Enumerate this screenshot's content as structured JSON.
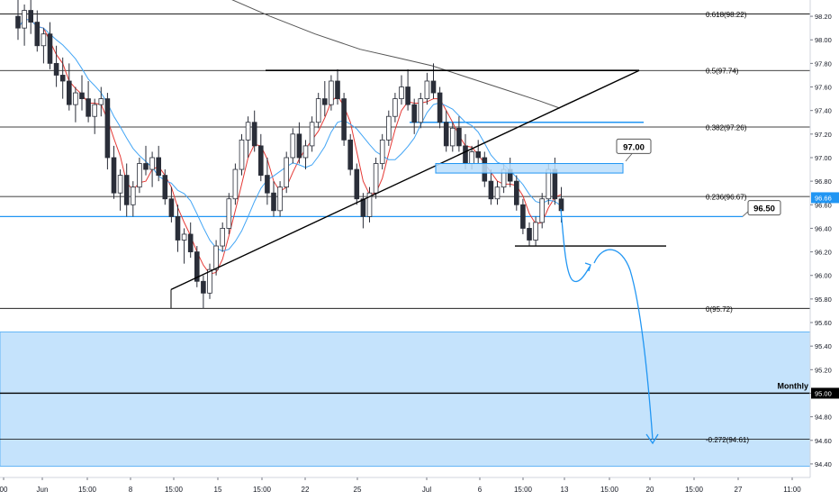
{
  "chart_data": {
    "type": "candlestick",
    "y_axis": {
      "min": 94.3,
      "max": 98.3,
      "ticks": [
        "98.20",
        "98.00",
        "97.80",
        "97.60",
        "97.40",
        "97.20",
        "97.00",
        "96.80",
        "96.60",
        "96.40",
        "96.20",
        "96.00",
        "95.80",
        "95.60",
        "95.40",
        "95.20",
        "95.00",
        "94.80",
        "94.60",
        "94.40"
      ],
      "current_price": "96.66",
      "current_value": 96.66,
      "highlight_price": "95.00",
      "highlight_value": 95.0
    },
    "x_axis": {
      "labels": [
        "00",
        "Jun",
        "15:00",
        "8",
        "15:00",
        "15",
        "15:00",
        "22",
        "25",
        "Jul",
        "6",
        "15:00",
        "13",
        "15:00",
        "20",
        "15:00",
        "27",
        "11:00"
      ]
    },
    "fib_levels": [
      {
        "label": "0.618(98.22)",
        "value": 98.22
      },
      {
        "label": "0.5(97.74)",
        "value": 97.74
      },
      {
        "label": "0.382(97.26)",
        "value": 97.26
      },
      {
        "label": "0.236(96.67)",
        "value": 96.67
      },
      {
        "label": "0(95.72)",
        "value": 95.72
      },
      {
        "label": "-0.272(94.61)",
        "value": 94.61
      }
    ],
    "horizontal_levels": [
      {
        "value": 96.5,
        "color": "#2196f3"
      },
      {
        "value": 97.3,
        "color": "#2196f3"
      },
      {
        "value": 95.0,
        "color": "#000000"
      }
    ],
    "annotations": {
      "box_97": "97.00",
      "box_9650": "96.50",
      "monthly_label": "Monthly"
    },
    "zone": {
      "from": 94.38,
      "to": 95.52,
      "color": "#bbdefb"
    },
    "colors": {
      "bull_body": "#ffffff",
      "bear_body": "#2a2e39",
      "sma_fast": "#e53935",
      "sma_mid": "#42a5f5",
      "sma_slow": "#555555",
      "accent_blue": "#2196f3",
      "zone_fill": "#bbdefb",
      "price_label_bg": "#2196f3"
    },
    "candles": [
      [
        98.2,
        98.35,
        98.0,
        98.1
      ],
      [
        98.1,
        98.3,
        97.95,
        98.25
      ],
      [
        98.25,
        98.4,
        98.05,
        98.15
      ],
      [
        98.15,
        98.25,
        97.9,
        97.95
      ],
      [
        97.95,
        98.1,
        97.8,
        98.05
      ],
      [
        98.05,
        98.15,
        97.75,
        97.8
      ],
      [
        97.8,
        97.95,
        97.6,
        97.7
      ],
      [
        97.7,
        97.85,
        97.5,
        97.65
      ],
      [
        97.65,
        97.8,
        97.4,
        97.45
      ],
      [
        97.45,
        97.6,
        97.3,
        97.55
      ],
      [
        97.55,
        97.7,
        97.4,
        97.5
      ],
      [
        97.5,
        97.65,
        97.3,
        97.35
      ],
      [
        97.35,
        97.5,
        97.2,
        97.45
      ],
      [
        97.45,
        97.6,
        97.35,
        97.5
      ],
      [
        97.5,
        97.55,
        96.9,
        97.0
      ],
      [
        97.0,
        97.1,
        96.65,
        96.7
      ],
      [
        96.7,
        96.9,
        96.55,
        96.85
      ],
      [
        96.85,
        96.95,
        96.5,
        96.6
      ],
      [
        96.6,
        96.8,
        96.5,
        96.75
      ],
      [
        96.75,
        97.0,
        96.7,
        96.95
      ],
      [
        96.95,
        97.1,
        96.85,
        96.9
      ],
      [
        96.9,
        97.05,
        96.75,
        97.0
      ],
      [
        97.0,
        97.1,
        96.8,
        96.85
      ],
      [
        96.85,
        96.9,
        96.6,
        96.65
      ],
      [
        96.65,
        96.75,
        96.45,
        96.5
      ],
      [
        96.5,
        96.6,
        96.2,
        96.3
      ],
      [
        96.3,
        96.4,
        96.1,
        96.35
      ],
      [
        96.35,
        96.45,
        96.15,
        96.2
      ],
      [
        96.2,
        96.25,
        95.9,
        95.95
      ],
      [
        95.95,
        96.0,
        95.72,
        95.85
      ],
      [
        95.85,
        96.1,
        95.8,
        96.05
      ],
      [
        96.05,
        96.3,
        96.0,
        96.25
      ],
      [
        96.25,
        96.45,
        96.2,
        96.4
      ],
      [
        96.4,
        96.7,
        96.35,
        96.65
      ],
      [
        96.65,
        96.95,
        96.6,
        96.9
      ],
      [
        96.9,
        97.2,
        96.85,
        97.15
      ],
      [
        97.15,
        97.35,
        97.0,
        97.3
      ],
      [
        97.3,
        97.4,
        97.05,
        97.1
      ],
      [
        97.1,
        97.2,
        96.8,
        96.85
      ],
      [
        96.85,
        97.0,
        96.6,
        96.7
      ],
      [
        96.7,
        96.8,
        96.5,
        96.55
      ],
      [
        96.55,
        96.8,
        96.5,
        96.75
      ],
      [
        96.75,
        97.05,
        96.7,
        97.0
      ],
      [
        97.0,
        97.25,
        96.95,
        97.2
      ],
      [
        97.2,
        97.3,
        96.95,
        97.0
      ],
      [
        97.0,
        97.15,
        96.9,
        97.1
      ],
      [
        97.1,
        97.35,
        97.05,
        97.3
      ],
      [
        97.3,
        97.55,
        97.25,
        97.5
      ],
      [
        97.5,
        97.65,
        97.35,
        97.45
      ],
      [
        97.45,
        97.7,
        97.4,
        97.65
      ],
      [
        97.65,
        97.75,
        97.45,
        97.5
      ],
      [
        97.5,
        97.55,
        97.1,
        97.15
      ],
      [
        97.15,
        97.2,
        96.85,
        96.9
      ],
      [
        96.9,
        96.95,
        96.6,
        96.65
      ],
      [
        96.65,
        96.7,
        96.4,
        96.5
      ],
      [
        96.5,
        96.75,
        96.45,
        96.7
      ],
      [
        96.7,
        97.0,
        96.65,
        96.95
      ],
      [
        96.95,
        97.2,
        96.9,
        97.15
      ],
      [
        97.15,
        97.4,
        97.1,
        97.35
      ],
      [
        97.35,
        97.55,
        97.3,
        97.5
      ],
      [
        97.5,
        97.7,
        97.45,
        97.6
      ],
      [
        97.6,
        97.75,
        97.4,
        97.45
      ],
      [
        97.45,
        97.5,
        97.2,
        97.3
      ],
      [
        97.3,
        97.55,
        97.25,
        97.5
      ],
      [
        97.5,
        97.72,
        97.45,
        97.65
      ],
      [
        97.65,
        97.8,
        97.5,
        97.55
      ],
      [
        97.55,
        97.6,
        97.25,
        97.3
      ],
      [
        97.3,
        97.4,
        97.05,
        97.1
      ],
      [
        97.1,
        97.3,
        97.05,
        97.25
      ],
      [
        97.25,
        97.35,
        97.05,
        97.1
      ],
      [
        97.1,
        97.2,
        96.9,
        96.95
      ],
      [
        96.95,
        97.1,
        96.9,
        97.05
      ],
      [
        97.05,
        97.15,
        96.95,
        97.0
      ],
      [
        97.0,
        97.05,
        96.75,
        96.8
      ],
      [
        96.8,
        96.9,
        96.6,
        96.65
      ],
      [
        96.65,
        96.8,
        96.6,
        96.75
      ],
      [
        96.75,
        96.95,
        96.7,
        96.9
      ],
      [
        96.9,
        97.0,
        96.75,
        96.8
      ],
      [
        96.8,
        96.85,
        96.55,
        96.6
      ],
      [
        96.6,
        96.65,
        96.35,
        96.4
      ],
      [
        96.4,
        96.45,
        96.25,
        96.3
      ],
      [
        96.3,
        96.5,
        96.25,
        96.45
      ],
      [
        96.45,
        96.7,
        96.4,
        96.65
      ],
      [
        96.65,
        96.95,
        96.6,
        96.9
      ],
      [
        96.9,
        97.0,
        96.6,
        96.65
      ],
      [
        96.65,
        96.75,
        96.45,
        96.55
      ]
    ]
  }
}
